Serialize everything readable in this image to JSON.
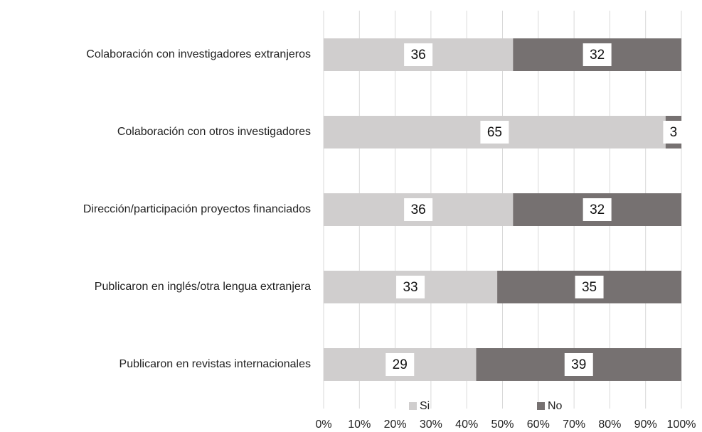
{
  "chart_data": {
    "type": "bar",
    "orientation": "horizontal",
    "stacked": "percent",
    "categories": [
      "Colaboración con investigadores extranjeros",
      "Colaboración con otros investigadores",
      "Dirección/participación proyectos financiados",
      "Publicaron en inglés/otra lengua extranjera",
      "Publicaron en revistas internacionales"
    ],
    "series": [
      {
        "name": "Si",
        "color": "#d0cece",
        "values": [
          36,
          65,
          36,
          33,
          29
        ]
      },
      {
        "name": "No",
        "color": "#767171",
        "values": [
          32,
          3,
          32,
          35,
          39
        ]
      }
    ],
    "xlim": [
      0,
      100
    ],
    "xticks": [
      {
        "value": 0,
        "label": "0%"
      },
      {
        "value": 10,
        "label": "10%"
      },
      {
        "value": 20,
        "label": "20%"
      },
      {
        "value": 30,
        "label": "30%"
      },
      {
        "value": 40,
        "label": "40%"
      },
      {
        "value": 50,
        "label": "50%"
      },
      {
        "value": 60,
        "label": "60%"
      },
      {
        "value": 70,
        "label": "70%"
      },
      {
        "value": 80,
        "label": "80%"
      },
      {
        "value": 90,
        "label": "90%"
      },
      {
        "value": 100,
        "label": "100%"
      }
    ],
    "grid": true,
    "legend": "bottom"
  }
}
